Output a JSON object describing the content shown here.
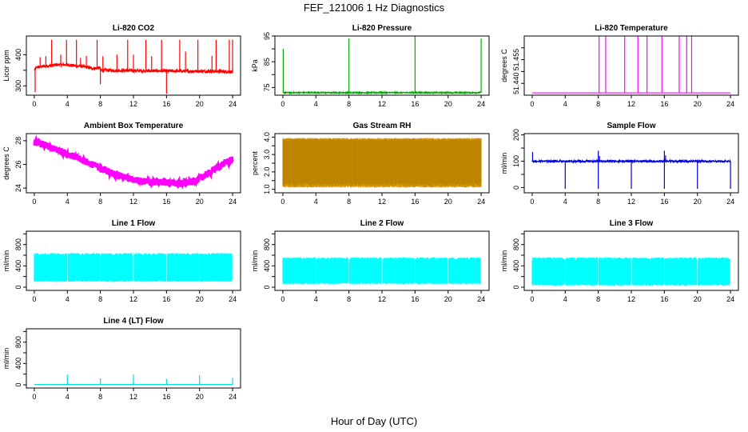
{
  "title": "FEF_121006  1 Hz Diagnostics",
  "xlabel": "Hour of Day (UTC)",
  "chart_data": [
    {
      "id": "co2",
      "type": "line",
      "title": "Li-820 CO2",
      "ylabel": "Licor ppm",
      "xlim": [
        0,
        24
      ],
      "ylim": [
        270,
        460
      ],
      "yticks": [
        300,
        350,
        400
      ],
      "ytick_labels": [
        "300",
        "",
        "400"
      ],
      "xticks": [
        0,
        4,
        8,
        12,
        16,
        20,
        24
      ],
      "xtick_labels": [
        "0",
        "4",
        "8",
        "12",
        "16",
        "20",
        "24"
      ],
      "color": "#ff0000",
      "series": [
        {
          "base": [
            [
              0,
              350
            ],
            [
              0.3,
              360
            ],
            [
              1,
              362
            ],
            [
              2,
              365
            ],
            [
              3,
              368
            ],
            [
              4,
              368
            ],
            [
              5,
              364
            ],
            [
              6,
              362
            ],
            [
              7,
              356
            ],
            [
              7.95,
              358
            ],
            [
              8.05,
              350
            ],
            [
              9,
              350
            ],
            [
              10,
              349
            ],
            [
              12,
              349
            ],
            [
              14,
              348
            ],
            [
              16,
              348
            ],
            [
              18,
              347
            ],
            [
              20,
              347
            ],
            [
              22,
              347
            ],
            [
              24,
              345
            ]
          ],
          "noise": 5,
          "spikes_up": [
            [
              0.7,
              392
            ],
            [
              1.4,
              395
            ],
            [
              2.1,
              448
            ],
            [
              3.2,
              400
            ],
            [
              3.9,
              448
            ],
            [
              5.1,
              448
            ],
            [
              5.6,
              390
            ],
            [
              6.3,
              396
            ],
            [
              7.6,
              448
            ],
            [
              8.3,
              395
            ],
            [
              10.0,
              400
            ],
            [
              11.3,
              448
            ],
            [
              12.0,
              400
            ],
            [
              13.5,
              448
            ],
            [
              14.2,
              395
            ],
            [
              15.4,
              448
            ],
            [
              17.6,
              448
            ],
            [
              18.3,
              410
            ],
            [
              19.8,
              448
            ],
            [
              21.5,
              396
            ],
            [
              22.0,
              448
            ],
            [
              23.6,
              448
            ],
            [
              24.0,
              448
            ]
          ],
          "spikes_down": [
            [
              0.1,
              280
            ],
            [
              8.0,
              305
            ],
            [
              16.0,
              275
            ],
            [
              24.0,
              340
            ]
          ]
        }
      ]
    },
    {
      "id": "pressure",
      "type": "line",
      "title": "Li-820 Pressure",
      "ylabel": "kPa",
      "xlim": [
        0,
        24
      ],
      "ylim": [
        72,
        95
      ],
      "yticks": [
        75,
        80,
        85,
        90,
        95
      ],
      "ytick_labels": [
        "75",
        "",
        "85",
        "",
        "95"
      ],
      "xticks": [
        0,
        4,
        8,
        12,
        16,
        20,
        24
      ],
      "xtick_labels": [
        "0",
        "4",
        "8",
        "12",
        "16",
        "20",
        "24"
      ],
      "color": "#00aa00",
      "series": [
        {
          "base": [
            [
              0,
              73
            ],
            [
              24,
              73
            ]
          ],
          "noise": 0.2,
          "spikes_up": [
            [
              0.05,
              90
            ],
            [
              8.0,
              94
            ],
            [
              16.0,
              95
            ],
            [
              24.0,
              94
            ]
          ],
          "spikes_down": []
        }
      ]
    },
    {
      "id": "licor-temp",
      "type": "line",
      "title": "Li-820 Temperature",
      "ylabel": "degrees C",
      "xlim": [
        0,
        24
      ],
      "ylim": [
        51.435,
        51.46
      ],
      "yticks": [
        51.44,
        51.445,
        51.45,
        51.455
      ],
      "ytick_labels": [
        "51.440",
        "",
        "51.455",
        ""
      ],
      "xticks": [
        0,
        4,
        8,
        12,
        16,
        20,
        24
      ],
      "xtick_labels": [
        "0",
        "4",
        "8",
        "12",
        "16",
        "20",
        "24"
      ],
      "color": "#ff00ff",
      "series": [
        {
          "base": [
            [
              0,
              51.436
            ],
            [
              24,
              51.436
            ]
          ],
          "noise": 0,
          "spikes_up": [
            [
              8.1,
              51.462
            ],
            [
              8.9,
              51.462
            ],
            [
              11.2,
              51.462
            ],
            [
              12.8,
              51.462
            ],
            [
              13.9,
              51.462
            ],
            [
              15.7,
              51.462
            ],
            [
              17.8,
              51.462
            ],
            [
              18.7,
              51.462
            ],
            [
              19.3,
              51.462
            ]
          ],
          "spikes_down": []
        }
      ]
    },
    {
      "id": "ambient-temp",
      "type": "line",
      "title": "Ambient Box Temperature",
      "ylabel": "degrees C",
      "xlim": [
        0,
        24
      ],
      "ylim": [
        23.6,
        28.6
      ],
      "yticks": [
        24,
        26,
        28
      ],
      "ytick_labels": [
        "24",
        "26",
        "28"
      ],
      "xticks": [
        0,
        4,
        8,
        12,
        16,
        20,
        24
      ],
      "xtick_labels": [
        "0",
        "4",
        "8",
        "12",
        "16",
        "20",
        "24"
      ],
      "color": "#ff00ff",
      "series": [
        {
          "base": [
            [
              0,
              27.9
            ],
            [
              1,
              27.7
            ],
            [
              2,
              27.4
            ],
            [
              4,
              26.9
            ],
            [
              6,
              26.3
            ],
            [
              8,
              25.7
            ],
            [
              10,
              25.1
            ],
            [
              12,
              24.7
            ],
            [
              14,
              24.5
            ],
            [
              16,
              24.5
            ],
            [
              17.5,
              24.4
            ],
            [
              19,
              24.5
            ],
            [
              20,
              24.8
            ],
            [
              21,
              25.2
            ],
            [
              22,
              25.7
            ],
            [
              23,
              26.1
            ],
            [
              24,
              26.4
            ]
          ],
          "noise": 0.3,
          "spikes_up": [],
          "spikes_down": []
        }
      ]
    },
    {
      "id": "rh",
      "type": "line",
      "title": "Gas Stream RH",
      "ylabel": "percent",
      "xlim": [
        0,
        24
      ],
      "ylim": [
        0.8,
        4.2
      ],
      "yticks": [
        1,
        1.5,
        2,
        2.5,
        3,
        3.5,
        4
      ],
      "ytick_labels": [
        "1.0",
        "",
        "2.0",
        "",
        "3.0",
        "",
        "4.0"
      ],
      "xticks": [
        0,
        4,
        8,
        12,
        16,
        20,
        24
      ],
      "xtick_labels": [
        "0",
        "4",
        "8",
        "12",
        "16",
        "20",
        "24"
      ],
      "color": "#e8a000",
      "series": [
        {
          "band": [
            1.1,
            3.95
          ]
        }
      ]
    },
    {
      "id": "sample-flow",
      "type": "line",
      "title": "Sample Flow",
      "ylabel": "ml/min",
      "xlim": [
        0,
        24
      ],
      "ylim": [
        -20,
        205
      ],
      "yticks": [
        0,
        50,
        100,
        150,
        200
      ],
      "ytick_labels": [
        "0",
        "",
        "100",
        "",
        "200"
      ],
      "xticks": [
        0,
        4,
        8,
        12,
        16,
        20,
        24
      ],
      "xtick_labels": [
        "0",
        "4",
        "8",
        "12",
        "16",
        "20",
        "24"
      ],
      "color": "#0000dd",
      "series": [
        {
          "base": [
            [
              0,
              100
            ],
            [
              24,
              100
            ]
          ],
          "noise": 3,
          "spikes_up": [
            [
              0.05,
              135
            ],
            [
              8.0,
              140
            ],
            [
              16.0,
              140
            ],
            [
              8.15,
              120
            ],
            [
              16.15,
              122
            ]
          ],
          "spikes_down": [
            [
              4.0,
              -5
            ],
            [
              8.0,
              -5
            ],
            [
              12.0,
              -5
            ],
            [
              16.0,
              -5
            ],
            [
              20.0,
              -5
            ],
            [
              24.0,
              -5
            ]
          ]
        }
      ]
    },
    {
      "id": "line1-flow",
      "type": "line",
      "title": "Line 1 Flow",
      "ylabel": "ml/min",
      "xlim": [
        0,
        24
      ],
      "ylim": [
        -60,
        1050
      ],
      "yticks": [
        0,
        200,
        400,
        600,
        800,
        1000
      ],
      "ytick_labels": [
        "0",
        "",
        "400",
        "",
        "800",
        ""
      ],
      "xticks": [
        0,
        4,
        8,
        12,
        16,
        20,
        24
      ],
      "xtick_labels": [
        "0",
        "4",
        "8",
        "12",
        "16",
        "20",
        "24"
      ],
      "color": "#00ffff",
      "series": [
        {
          "band": [
            100,
            640
          ],
          "gaps": [
            4,
            8,
            12,
            16,
            20,
            24
          ]
        }
      ]
    },
    {
      "id": "line2-flow",
      "type": "line",
      "title": "Line 2 Flow",
      "ylabel": "ml/min",
      "xlim": [
        0,
        24
      ],
      "ylim": [
        -60,
        1050
      ],
      "yticks": [
        0,
        200,
        400,
        600,
        800,
        1000
      ],
      "ytick_labels": [
        "0",
        "",
        "400",
        "",
        "800",
        ""
      ],
      "xticks": [
        0,
        4,
        8,
        12,
        16,
        20,
        24
      ],
      "xtick_labels": [
        "0",
        "4",
        "8",
        "12",
        "16",
        "20",
        "24"
      ],
      "color": "#00ffff",
      "series": [
        {
          "band": [
            60,
            560
          ],
          "gaps": [
            4,
            8,
            12,
            16,
            20,
            24
          ]
        }
      ]
    },
    {
      "id": "line3-flow",
      "type": "line",
      "title": "Line 3 Flow",
      "ylabel": "ml/min",
      "xlim": [
        0,
        24
      ],
      "ylim": [
        -60,
        1050
      ],
      "yticks": [
        0,
        200,
        400,
        600,
        800,
        1000
      ],
      "ytick_labels": [
        "0",
        "",
        "400",
        "",
        "800",
        ""
      ],
      "xticks": [
        0,
        4,
        8,
        12,
        16,
        20,
        24
      ],
      "xtick_labels": [
        "0",
        "4",
        "8",
        "12",
        "16",
        "20",
        "24"
      ],
      "color": "#00ffff",
      "series": [
        {
          "band": [
            30,
            560
          ],
          "gaps": [
            4,
            8,
            12,
            16,
            20,
            24
          ]
        }
      ]
    },
    {
      "id": "line4-flow",
      "type": "line",
      "title": "Line 4 (LT) Flow",
      "ylabel": "ml/min",
      "xlim": [
        0,
        24
      ],
      "ylim": [
        -60,
        1050
      ],
      "yticks": [
        0,
        200,
        400,
        600,
        800,
        1000
      ],
      "ytick_labels": [
        "0",
        "",
        "400",
        "",
        "800",
        ""
      ],
      "xticks": [
        0,
        4,
        8,
        12,
        16,
        20,
        24
      ],
      "xtick_labels": [
        "0",
        "4",
        "8",
        "12",
        "16",
        "20",
        "24"
      ],
      "color": "#00dddd",
      "series": [
        {
          "base": [
            [
              0,
              5
            ],
            [
              24,
              5
            ]
          ],
          "noise": 2,
          "spikes_up": [
            [
              4.0,
              190
            ],
            [
              8.0,
              120
            ],
            [
              12.0,
              190
            ],
            [
              16.0,
              110
            ],
            [
              20.0,
              180
            ],
            [
              24.0,
              130
            ]
          ],
          "spikes_down": []
        }
      ]
    }
  ]
}
